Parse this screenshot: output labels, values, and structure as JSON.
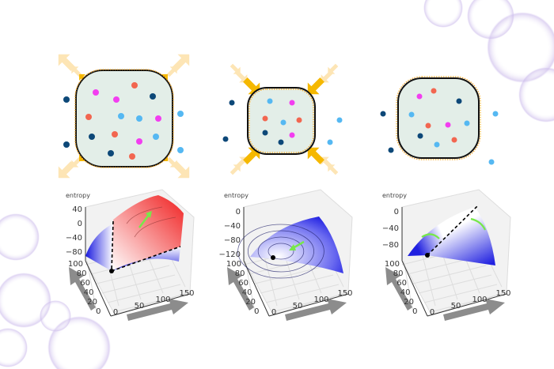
{
  "colors": {
    "compartment_fill": "#e3eee8",
    "membrane": "#111111",
    "arrow_strong": "#f5b800",
    "arrow_faded": "#fde5b5",
    "particle_red": "#f26650",
    "particle_magenta": "#f23ef0",
    "particle_navy": "#0d4878",
    "particle_sky": "#55b8f2",
    "gradient_arrow": "#77e84a",
    "big_axis_arrow": "#8c8c8c"
  },
  "panels": [
    {
      "state": "expanding",
      "z_label": "entropy",
      "z_ticks": [
        "40",
        "0",
        "−40",
        "−80"
      ],
      "y_ticks": [
        "100",
        "80",
        "60",
        "40",
        "20",
        "0"
      ],
      "x_ticks": [
        "0",
        "50",
        "100",
        "150"
      ]
    },
    {
      "state": "contracting",
      "z_label": "entropy",
      "z_ticks": [
        "0",
        "−40",
        "−80",
        "−120"
      ],
      "y_ticks": [
        "100",
        "80",
        "60",
        "40",
        "20",
        "0"
      ],
      "x_ticks": [
        "0",
        "50",
        "100",
        "150"
      ]
    },
    {
      "state": "equilibrium",
      "z_label": "entropy",
      "z_ticks": [
        "0",
        "−40",
        "−80"
      ],
      "y_ticks": [
        "100",
        "80",
        "60",
        "40",
        "20",
        "0"
      ],
      "x_ticks": [
        "0",
        "50",
        "100",
        "150"
      ]
    }
  ]
}
